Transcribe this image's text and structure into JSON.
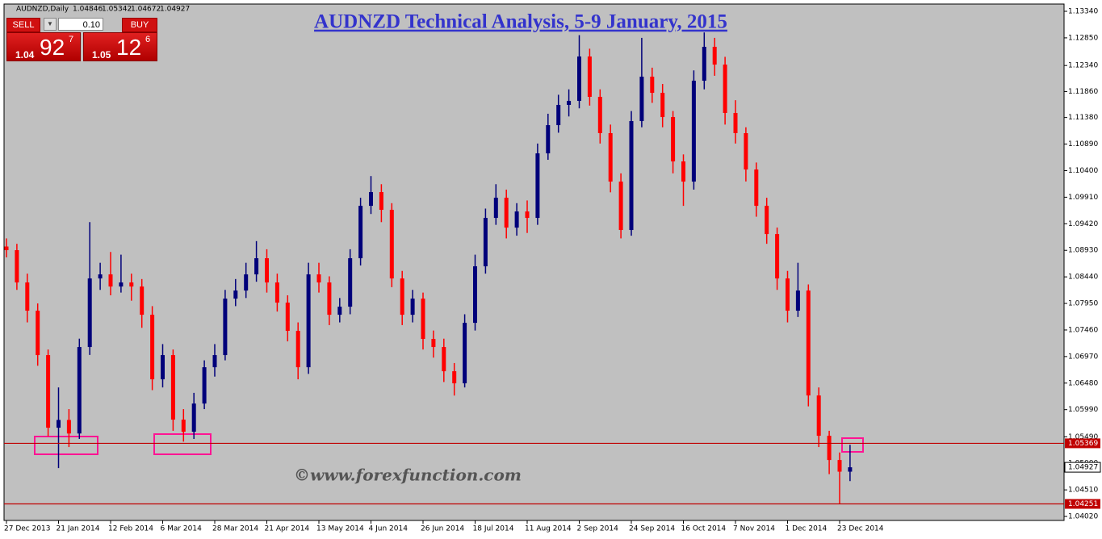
{
  "chart_data": {
    "type": "candlestick",
    "title": "AUDNZD Technical Analysis, 5-9 January, 2015",
    "symbol": "AUDNZD,Daily",
    "watermark": "©www.forexfunction.com",
    "categories": [
      "27 Dec 2013",
      null,
      null,
      null,
      null,
      "21 Jan 2014",
      null,
      null,
      null,
      null,
      "12 Feb 2014",
      null,
      null,
      null,
      null,
      "6 Mar 2014",
      null,
      null,
      null,
      null,
      "28 Mar 2014",
      null,
      null,
      null,
      null,
      "21 Apr 2014",
      null,
      null,
      null,
      null,
      "13 May 2014",
      null,
      null,
      null,
      null,
      "4 Jun 2014",
      null,
      null,
      null,
      null,
      "26 Jun 2014",
      null,
      null,
      null,
      null,
      "18 Jul 2014",
      null,
      null,
      null,
      null,
      "11 Aug 2014",
      null,
      null,
      null,
      null,
      "2 Sep 2014",
      null,
      null,
      null,
      null,
      "24 Sep 2014",
      null,
      null,
      null,
      null,
      "16 Oct 2014",
      null,
      null,
      null,
      null,
      "7 Nov 2014",
      null,
      null,
      null,
      null,
      "1 Dec 2014",
      null,
      null,
      null,
      null,
      "23 Dec 2014",
      null
    ],
    "open": [
      1.09,
      1.08933,
      1.08337,
      1.07816,
      1.06997,
      1.05657,
      1.058,
      1.0555,
      1.07146,
      1.08411,
      1.08486,
      1.08262,
      1.08337,
      1.08262,
      1.07741,
      1.0655,
      1.06997,
      1.05806,
      1.05582,
      1.06103,
      1.06773,
      1.06997,
      1.08039,
      1.08188,
      1.08486,
      1.08784,
      1.08337,
      1.07965,
      1.07444,
      1.06773,
      1.08486,
      1.08337,
      1.07741,
      1.0789,
      1.08784,
      1.09751,
      1.10005,
      1.09677,
      1.08411,
      1.07741,
      1.08039,
      1.07295,
      1.07146,
      1.06699,
      1.06476,
      1.07592,
      1.08635,
      1.09528,
      1.099,
      1.09349,
      1.09647,
      1.09528,
      1.10719,
      1.1124,
      1.11613,
      1.11687,
      1.12506,
      1.11762,
      1.11092,
      1.10198,
      1.09305,
      1.11315,
      1.12134,
      1.11836,
      1.11389,
      1.1057,
      1.10198,
      1.12059,
      1.12685,
      1.12357,
      1.11464,
      1.11092,
      1.10421,
      1.09751,
      1.0923,
      1.08411,
      1.07816,
      1.08188,
      1.06252,
      1.05508,
      1.05061,
      1.04846
    ],
    "high": [
      1.0915,
      1.0905,
      1.085,
      1.0795,
      1.071,
      1.064,
      1.06,
      1.073,
      1.0945,
      1.087,
      1.089,
      1.0885,
      1.085,
      1.084,
      1.079,
      1.072,
      1.071,
      1.06,
      1.063,
      1.069,
      1.072,
      1.082,
      1.084,
      1.087,
      1.091,
      1.0895,
      1.085,
      1.081,
      1.076,
      1.087,
      1.087,
      1.0845,
      1.0805,
      1.0895,
      1.099,
      1.103,
      1.1015,
      1.098,
      1.0855,
      1.082,
      1.0815,
      1.0745,
      1.073,
      1.0685,
      1.0775,
      1.0885,
      1.097,
      1.1015,
      1.1005,
      1.098,
      1.0985,
      1.109,
      1.1145,
      1.118,
      1.119,
      1.129,
      1.1265,
      1.119,
      1.1125,
      1.1035,
      1.115,
      1.1285,
      1.123,
      1.12,
      1.115,
      1.107,
      1.1225,
      1.1295,
      1.1285,
      1.125,
      1.117,
      1.112,
      1.1055,
      1.099,
      1.0935,
      1.0855,
      1.087,
      1.083,
      1.064,
      1.056,
      1.052,
      1.05342
    ],
    "low": [
      1.088,
      1.082,
      1.076,
      1.068,
      1.055,
      1.04912,
      1.053,
      1.0545,
      1.07,
      1.082,
      1.081,
      1.0815,
      1.08,
      1.075,
      1.0635,
      1.064,
      1.056,
      1.054,
      1.0545,
      1.06,
      1.066,
      1.069,
      1.079,
      1.0805,
      1.0835,
      1.0815,
      1.078,
      1.0725,
      1.0655,
      1.0665,
      1.0815,
      1.0755,
      1.076,
      1.0775,
      1.0865,
      1.096,
      1.0945,
      1.0825,
      1.0755,
      1.076,
      1.071,
      1.0695,
      1.065,
      1.0625,
      1.064,
      1.0745,
      1.085,
      1.094,
      1.0915,
      1.092,
      1.0925,
      1.094,
      1.106,
      1.111,
      1.114,
      1.1155,
      1.116,
      1.109,
      1.1,
      1.0915,
      1.092,
      1.112,
      1.1165,
      1.112,
      1.1035,
      1.0975,
      1.1005,
      1.119,
      1.1215,
      1.1125,
      1.109,
      1.102,
      1.0955,
      1.0905,
      1.082,
      1.076,
      1.077,
      1.0605,
      1.053,
      1.048,
      1.04251,
      1.04672
    ],
    "close": [
      1.08933,
      1.08337,
      1.07816,
      1.06997,
      1.05657,
      1.058,
      1.0555,
      1.07146,
      1.08411,
      1.08486,
      1.08262,
      1.08337,
      1.08262,
      1.07741,
      1.0655,
      1.06997,
      1.05806,
      1.05582,
      1.06103,
      1.06773,
      1.06997,
      1.08039,
      1.08188,
      1.08486,
      1.08784,
      1.08337,
      1.07965,
      1.07444,
      1.06773,
      1.08486,
      1.08337,
      1.07741,
      1.0789,
      1.08784,
      1.09751,
      1.10005,
      1.09677,
      1.08411,
      1.07741,
      1.08039,
      1.07295,
      1.07146,
      1.06699,
      1.06476,
      1.07592,
      1.08635,
      1.09528,
      1.099,
      1.09349,
      1.09647,
      1.09528,
      1.10719,
      1.1124,
      1.11613,
      1.11687,
      1.12506,
      1.11762,
      1.11092,
      1.10198,
      1.09305,
      1.11315,
      1.12134,
      1.11836,
      1.11389,
      1.1057,
      1.10198,
      1.12059,
      1.12685,
      1.12357,
      1.11464,
      1.11092,
      1.10421,
      1.09751,
      1.0923,
      1.08411,
      1.07816,
      1.08188,
      1.06252,
      1.05508,
      1.05061,
      1.04846,
      1.04927
    ],
    "up_color": "#00007a",
    "down_color": "#ff0000",
    "background": "#c0c0c0",
    "ylim": [
      1.03946,
      1.13474
    ],
    "yticks": [
      {
        "value": 1.1334,
        "label": "1.13340"
      },
      {
        "value": 1.1285,
        "label": "1.12850"
      },
      {
        "value": 1.1234,
        "label": "1.12340"
      },
      {
        "value": 1.1186,
        "label": "1.11860"
      },
      {
        "value": 1.1138,
        "label": "1.11380"
      },
      {
        "value": 1.1089,
        "label": "1.10890"
      },
      {
        "value": 1.104,
        "label": "1.10400"
      },
      {
        "value": 1.0991,
        "label": "1.09910"
      },
      {
        "value": 1.0942,
        "label": "1.09420"
      },
      {
        "value": 1.0893,
        "label": "1.08930"
      },
      {
        "value": 1.0844,
        "label": "1.08440"
      },
      {
        "value": 1.0795,
        "label": "1.07950"
      },
      {
        "value": 1.0746,
        "label": "1.07460"
      },
      {
        "value": 1.0697,
        "label": "1.06970"
      },
      {
        "value": 1.0648,
        "label": "1.06480"
      },
      {
        "value": 1.0599,
        "label": "1.05990"
      },
      {
        "value": 1.0549,
        "label": "1.05490"
      },
      {
        "value": 1.05,
        "label": "1.05000"
      },
      {
        "value": 1.0451,
        "label": "1.04510"
      },
      {
        "value": 1.0402,
        "label": "1.04020"
      }
    ],
    "hlines": [
      {
        "value": 1.05369,
        "color": "#c00000"
      },
      {
        "value": 1.04251,
        "color": "#c00000"
      }
    ],
    "trade_panel": {
      "sell": "SELL",
      "buy": "BUY",
      "lot": "0.10",
      "sell_price": [
        "1.04",
        "92",
        "7"
      ],
      "buy_price": [
        "1.05",
        "12",
        "6"
      ]
    }
  }
}
